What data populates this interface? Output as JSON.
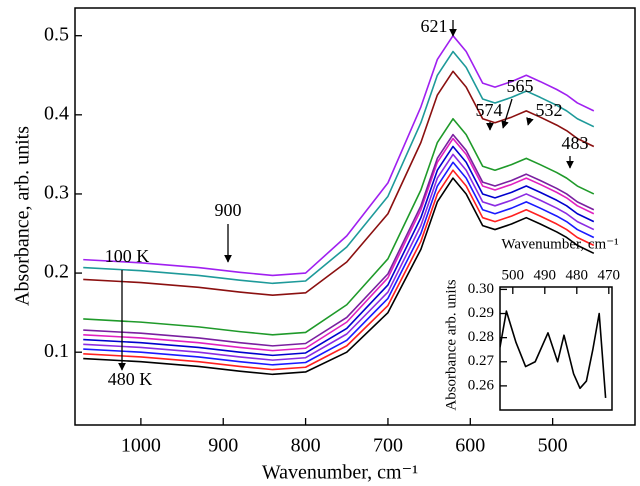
{
  "chart_data": [
    {
      "type": "line",
      "xlabel": "Wavenumber, cm⁻¹",
      "ylabel": "Absorbance, arb. units",
      "annotations": [
        "621",
        "574",
        "565",
        "532",
        "483",
        "900",
        "100 K",
        "480 K"
      ],
      "xlim": [
        1080,
        400
      ],
      "ylim": [
        0.008,
        0.535
      ],
      "xticks": [
        1000,
        900,
        800,
        700,
        600,
        500
      ],
      "yticks": [
        0.1,
        0.2,
        0.3,
        0.4,
        0.5
      ],
      "x": [
        1070,
        1000,
        930,
        880,
        840,
        800,
        750,
        700,
        660,
        640,
        621,
        605,
        585,
        570,
        550,
        532,
        515,
        495,
        483,
        470,
        450
      ],
      "series": [
        {
          "color": "#000000",
          "values": [
            0.092,
            0.088,
            0.082,
            0.076,
            0.072,
            0.075,
            0.1,
            0.15,
            0.23,
            0.29,
            0.32,
            0.3,
            0.26,
            0.255,
            0.262,
            0.27,
            0.262,
            0.252,
            0.245,
            0.235,
            0.225
          ]
        },
        {
          "color": "#ff2020",
          "values": [
            0.098,
            0.094,
            0.088,
            0.082,
            0.078,
            0.081,
            0.108,
            0.159,
            0.24,
            0.3,
            0.33,
            0.31,
            0.27,
            0.265,
            0.272,
            0.28,
            0.272,
            0.262,
            0.255,
            0.245,
            0.235
          ]
        },
        {
          "color": "#1a1aff",
          "values": [
            0.104,
            0.1,
            0.094,
            0.088,
            0.084,
            0.087,
            0.115,
            0.168,
            0.25,
            0.31,
            0.34,
            0.32,
            0.28,
            0.275,
            0.282,
            0.29,
            0.282,
            0.272,
            0.265,
            0.255,
            0.245
          ]
        },
        {
          "color": "#8b2be2",
          "values": [
            0.11,
            0.106,
            0.1,
            0.094,
            0.09,
            0.093,
            0.123,
            0.176,
            0.26,
            0.32,
            0.35,
            0.33,
            0.29,
            0.285,
            0.292,
            0.3,
            0.292,
            0.282,
            0.275,
            0.265,
            0.255
          ]
        },
        {
          "color": "#0000cd",
          "values": [
            0.116,
            0.112,
            0.106,
            0.1,
            0.096,
            0.099,
            0.13,
            0.185,
            0.27,
            0.33,
            0.36,
            0.34,
            0.3,
            0.295,
            0.302,
            0.31,
            0.302,
            0.292,
            0.285,
            0.275,
            0.265
          ]
        },
        {
          "color": "#e020c0",
          "values": [
            0.122,
            0.118,
            0.112,
            0.106,
            0.102,
            0.105,
            0.138,
            0.194,
            0.28,
            0.34,
            0.37,
            0.35,
            0.31,
            0.305,
            0.312,
            0.32,
            0.312,
            0.302,
            0.295,
            0.285,
            0.275
          ]
        },
        {
          "color": "#7a1fa0",
          "values": [
            0.128,
            0.124,
            0.118,
            0.112,
            0.108,
            0.111,
            0.144,
            0.199,
            0.285,
            0.345,
            0.375,
            0.355,
            0.315,
            0.31,
            0.317,
            0.325,
            0.317,
            0.307,
            0.3,
            0.29,
            0.28
          ]
        },
        {
          "color": "#1f9a2a",
          "values": [
            0.142,
            0.138,
            0.132,
            0.126,
            0.122,
            0.125,
            0.16,
            0.218,
            0.305,
            0.365,
            0.395,
            0.375,
            0.335,
            0.33,
            0.337,
            0.345,
            0.337,
            0.327,
            0.32,
            0.31,
            0.3
          ]
        },
        {
          "color": "#8b1010",
          "values": [
            0.192,
            0.188,
            0.182,
            0.176,
            0.172,
            0.175,
            0.214,
            0.275,
            0.365,
            0.425,
            0.455,
            0.435,
            0.395,
            0.39,
            0.397,
            0.405,
            0.397,
            0.387,
            0.38,
            0.37,
            0.36
          ]
        },
        {
          "color": "#1e9a9a",
          "values": [
            0.207,
            0.203,
            0.197,
            0.191,
            0.187,
            0.19,
            0.233,
            0.297,
            0.39,
            0.45,
            0.48,
            0.46,
            0.42,
            0.415,
            0.422,
            0.43,
            0.422,
            0.412,
            0.405,
            0.395,
            0.385
          ]
        },
        {
          "color": "#a020f0",
          "values": [
            0.217,
            0.213,
            0.207,
            0.201,
            0.197,
            0.2,
            0.247,
            0.314,
            0.41,
            0.47,
            0.5,
            0.48,
            0.44,
            0.435,
            0.442,
            0.45,
            0.442,
            0.432,
            0.425,
            0.415,
            0.405
          ]
        }
      ]
    },
    {
      "type": "line",
      "xlabel": "Wavenumber, cm⁻¹",
      "ylabel": "Absorbance arb. units",
      "xlim": [
        504,
        469
      ],
      "ylim": [
        0.25,
        0.301
      ],
      "xticks": [
        500,
        490,
        480,
        470
      ],
      "yticks": [
        {
          "value": 0.3,
          "label": "0.30"
        },
        0.29,
        0.28,
        0.27,
        0.26
      ],
      "x": [
        504,
        502,
        499,
        496,
        493,
        489,
        486,
        484,
        481,
        479,
        477,
        475,
        473,
        471
      ],
      "series": [
        {
          "color": "#000000",
          "values": [
            0.276,
            0.291,
            0.278,
            0.268,
            0.27,
            0.282,
            0.27,
            0.281,
            0.265,
            0.259,
            0.262,
            0.275,
            0.29,
            0.255
          ]
        }
      ]
    }
  ]
}
